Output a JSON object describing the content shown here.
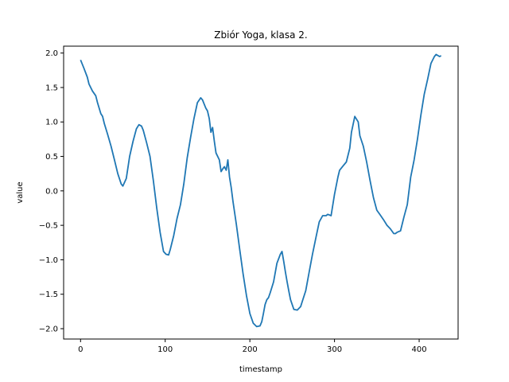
{
  "chart_data": {
    "type": "line",
    "title": "Zbiór Yoga, klasa 2.",
    "xlabel": "timestamp",
    "ylabel": "value",
    "xlim": [
      -20,
      446
    ],
    "ylim": [
      -2.15,
      2.1
    ],
    "xticks": [
      0,
      100,
      200,
      300,
      400
    ],
    "yticks": [
      -2.0,
      -1.5,
      -1.0,
      -0.5,
      0.0,
      0.5,
      1.0,
      1.5,
      2.0
    ],
    "grid": false,
    "color": "#1f77b4",
    "series": [
      {
        "x": [
          0,
          4,
          8,
          10,
          14,
          18,
          20,
          24,
          26,
          28,
          32,
          36,
          40,
          44,
          48,
          50,
          54,
          58,
          62,
          66,
          69,
          72,
          74,
          78,
          82,
          86,
          90,
          94,
          98,
          101,
          104,
          106,
          110,
          114,
          118,
          122,
          126,
          130,
          134,
          138,
          142,
          144,
          148,
          150,
          152,
          154,
          156,
          158,
          160,
          164,
          166,
          168,
          170,
          172,
          174,
          176,
          178,
          180,
          184,
          188,
          192,
          196,
          200,
          204,
          208,
          212,
          214,
          216,
          218,
          220,
          222,
          224,
          228,
          232,
          236,
          238,
          240,
          242,
          244,
          246,
          248,
          252,
          256,
          260,
          262,
          266,
          270,
          274,
          278,
          282,
          286,
          290,
          292,
          296,
          300,
          304,
          306,
          310,
          314,
          318,
          320,
          324,
          328,
          330,
          334,
          338,
          342,
          346,
          350,
          354,
          358,
          362,
          366,
          370,
          372,
          374,
          378,
          382,
          386,
          390,
          392,
          394,
          398,
          402,
          406,
          410,
          414,
          418,
          420,
          424,
          426
        ],
        "y": [
          1.9,
          1.78,
          1.65,
          1.55,
          1.45,
          1.38,
          1.28,
          1.12,
          1.08,
          0.98,
          0.82,
          0.65,
          0.45,
          0.25,
          0.1,
          0.07,
          0.18,
          0.5,
          0.72,
          0.9,
          0.96,
          0.94,
          0.88,
          0.7,
          0.5,
          0.15,
          -0.25,
          -0.6,
          -0.88,
          -0.92,
          -0.93,
          -0.85,
          -0.65,
          -0.4,
          -0.2,
          0.1,
          0.48,
          0.78,
          1.05,
          1.28,
          1.35,
          1.32,
          1.2,
          1.16,
          1.05,
          0.85,
          0.92,
          0.72,
          0.55,
          0.45,
          0.28,
          0.32,
          0.35,
          0.3,
          0.45,
          0.2,
          0.05,
          -0.15,
          -0.48,
          -0.85,
          -1.2,
          -1.52,
          -1.78,
          -1.92,
          -1.97,
          -1.96,
          -1.9,
          -1.78,
          -1.65,
          -1.58,
          -1.55,
          -1.48,
          -1.32,
          -1.05,
          -0.92,
          -0.88,
          -1.02,
          -1.18,
          -1.32,
          -1.45,
          -1.58,
          -1.72,
          -1.73,
          -1.68,
          -1.6,
          -1.45,
          -1.18,
          -0.92,
          -0.68,
          -0.45,
          -0.36,
          -0.36,
          -0.34,
          -0.36,
          -0.05,
          0.2,
          0.3,
          0.36,
          0.42,
          0.62,
          0.85,
          1.08,
          1.0,
          0.8,
          0.65,
          0.42,
          0.15,
          -0.1,
          -0.28,
          -0.35,
          -0.42,
          -0.5,
          -0.55,
          -0.62,
          -0.62,
          -0.6,
          -0.58,
          -0.38,
          -0.2,
          0.2,
          0.32,
          0.45,
          0.75,
          1.1,
          1.4,
          1.62,
          1.85,
          1.95,
          1.98,
          1.95,
          1.96
        ]
      }
    ]
  }
}
